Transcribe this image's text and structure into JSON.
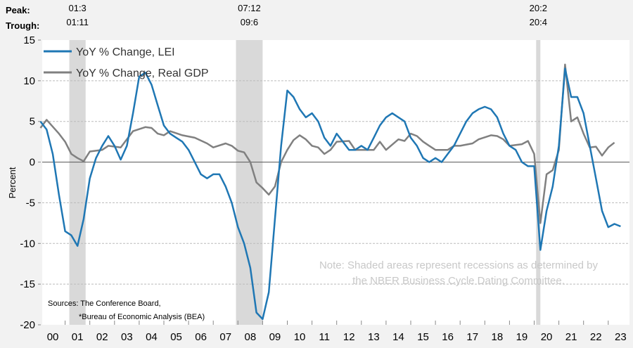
{
  "chart_data": {
    "type": "line",
    "ylabel": "Percent",
    "ylim": [
      -20,
      15
    ],
    "yticks": [
      15,
      10,
      5,
      0,
      -5,
      -10,
      -15,
      -20
    ],
    "xlim": [
      2000,
      2024
    ],
    "xtick_labels": [
      "00",
      "01",
      "02",
      "03",
      "04",
      "05",
      "06",
      "07",
      "08",
      "09",
      "10",
      "11",
      "12",
      "13",
      "14",
      "15",
      "16",
      "17",
      "18",
      "19",
      "20",
      "21",
      "22",
      "23"
    ],
    "grid": "horizontal dashed",
    "legend_placement": "top-left",
    "colors": {
      "lei": "#1f77b4",
      "gdp": "#808080",
      "recession": "#d9d9d9"
    },
    "recession_labels": {
      "peak_title": "Peak:",
      "trough_title": "Trough:"
    },
    "recessions": [
      {
        "peak": "01:3",
        "trough": "01:11",
        "start": 2001.17,
        "end": 2001.83
      },
      {
        "peak": "07:12",
        "trough": "09:6",
        "start": 2007.92,
        "end": 2009.0
      },
      {
        "peak": "20:2",
        "trough": "20:4",
        "start": 2020.08,
        "end": 2020.25
      }
    ],
    "series": [
      {
        "name": "YoY % Change, LEI",
        "key": "lei",
        "x": [
          2000,
          2000.25,
          2000.5,
          2000.75,
          2001,
          2001.25,
          2001.5,
          2001.75,
          2002,
          2002.25,
          2002.5,
          2002.75,
          2003,
          2003.25,
          2003.5,
          2003.75,
          2004,
          2004.25,
          2004.5,
          2004.75,
          2005,
          2005.25,
          2005.5,
          2005.75,
          2006,
          2006.25,
          2006.5,
          2006.75,
          2007,
          2007.25,
          2007.5,
          2007.75,
          2008,
          2008.25,
          2008.5,
          2008.75,
          2009,
          2009.25,
          2009.5,
          2009.75,
          2010,
          2010.25,
          2010.5,
          2010.75,
          2011,
          2011.25,
          2011.5,
          2011.75,
          2012,
          2012.25,
          2012.5,
          2012.75,
          2013,
          2013.25,
          2013.5,
          2013.75,
          2014,
          2014.25,
          2014.5,
          2014.75,
          2015,
          2015.25,
          2015.5,
          2015.75,
          2016,
          2016.25,
          2016.5,
          2016.75,
          2017,
          2017.25,
          2017.5,
          2017.75,
          2018,
          2018.25,
          2018.5,
          2018.75,
          2019,
          2019.25,
          2019.5,
          2019.75,
          2020,
          2020.25,
          2020.5,
          2020.75,
          2021,
          2021.25,
          2021.5,
          2021.75,
          2022,
          2022.25,
          2022.5,
          2022.75,
          2023,
          2023.25,
          2023.5
        ],
        "values": [
          5,
          4,
          1,
          -4,
          -8.5,
          -9,
          -10.3,
          -7,
          -2,
          0.5,
          2,
          3.2,
          2,
          0.3,
          2,
          6,
          10.5,
          11,
          9.5,
          7,
          4.5,
          3.5,
          3,
          2.5,
          1.5,
          0,
          -1.5,
          -2,
          -1.5,
          -1.5,
          -3,
          -5,
          -8,
          -10,
          -13,
          -18.5,
          -19.3,
          -16,
          -7,
          2,
          8.8,
          8,
          6.5,
          5.5,
          6,
          5,
          3,
          2,
          3.5,
          2.5,
          1.5,
          1.5,
          2,
          1.5,
          3,
          4.5,
          5.5,
          6,
          5.5,
          5,
          3,
          2,
          0.5,
          0,
          0.5,
          0,
          1,
          2,
          3.5,
          5,
          6,
          6.5,
          6.8,
          6.5,
          5.5,
          3.5,
          2,
          1.5,
          0,
          -0.5,
          -0.5,
          -10.8,
          -6,
          -3,
          2,
          11.5,
          8,
          8,
          6,
          2,
          -2,
          -6,
          -8,
          -7.6,
          -7.9
        ]
      },
      {
        "name": "YoY % Change, Real GDP",
        "key": "gdp",
        "x": [
          2000,
          2000.25,
          2000.75,
          2001,
          2001.25,
          2001.5,
          2001.75,
          2002,
          2002.5,
          2002.75,
          2003.25,
          2003.75,
          2004.25,
          2004.5,
          2004.75,
          2005,
          2005.25,
          2005.75,
          2006.25,
          2006.75,
          2007,
          2007.5,
          2007.75,
          2008,
          2008.25,
          2008.5,
          2008.75,
          2009,
          2009.25,
          2009.5,
          2009.75,
          2010,
          2010.25,
          2010.5,
          2010.75,
          2011,
          2011.25,
          2011.5,
          2011.75,
          2012,
          2012.5,
          2012.75,
          2013,
          2013.5,
          2013.75,
          2014,
          2014.5,
          2014.75,
          2015,
          2015.25,
          2015.5,
          2015.75,
          2016,
          2016.5,
          2016.75,
          2017,
          2017.5,
          2017.75,
          2018.25,
          2018.5,
          2018.75,
          2019,
          2019.5,
          2019.75,
          2020,
          2020.25,
          2020.5,
          2020.75,
          2021,
          2021.25,
          2021.5,
          2021.75,
          2022,
          2022.25,
          2022.5,
          2022.75,
          2023,
          2023.25
        ],
        "values": [
          4.2,
          5.2,
          3.5,
          2.5,
          1,
          0.5,
          0.1,
          1.3,
          1.5,
          2,
          1.8,
          3.8,
          4.3,
          4.2,
          3.5,
          3.3,
          3.8,
          3.3,
          3,
          2.3,
          1.8,
          2.3,
          2,
          1.4,
          1.2,
          0,
          -2.5,
          -3.2,
          -4,
          -3,
          0,
          1.5,
          2.7,
          3.3,
          2.8,
          2,
          1.8,
          1,
          1.5,
          2.5,
          2.6,
          1.5,
          1.5,
          1.5,
          2.5,
          1.5,
          2.8,
          2.6,
          3.5,
          3.2,
          2.5,
          2,
          1.5,
          1.5,
          2,
          2,
          2.3,
          2.8,
          3.3,
          3.2,
          2.8,
          2,
          2.2,
          2.6,
          1,
          -7.5,
          -1.5,
          -1,
          1.5,
          12,
          5,
          5.5,
          3.5,
          1.8,
          1.9,
          0.8,
          1.8,
          2.4
        ]
      }
    ],
    "annotations": {
      "note_line1": "Note: Shaded areas represent recessions as determined by",
      "note_line2": "the NBER Business Cycle Dating Committee.",
      "sources_line1": "Sources: The Conference Board,",
      "sources_line2": "*Bureau of Economic Analysis (BEA)"
    }
  }
}
